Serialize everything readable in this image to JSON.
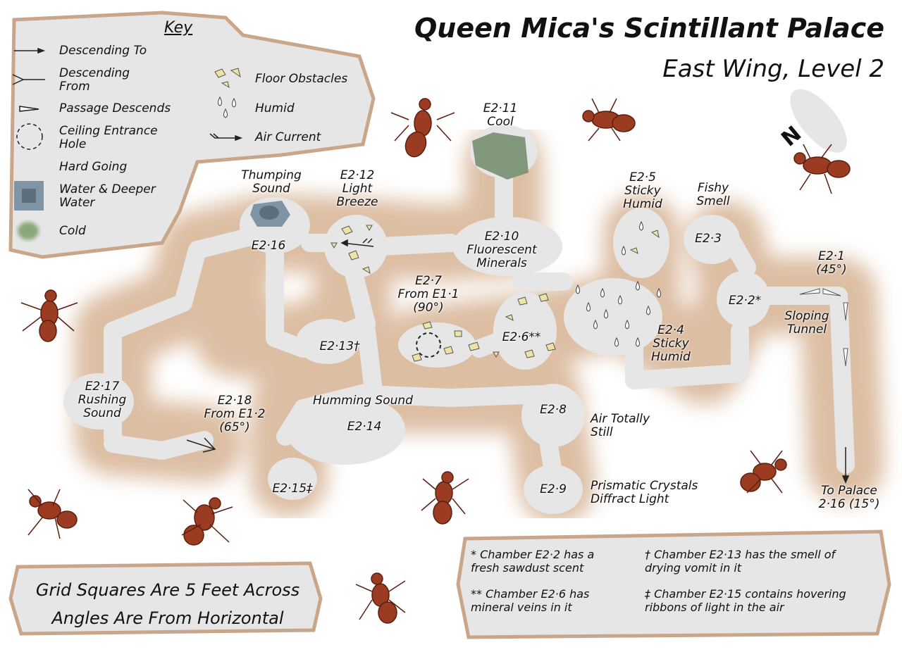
{
  "title": "Queen Mica's Scintillant Palace",
  "subtitle": "East Wing, Level 2",
  "compass_label": "N",
  "key": {
    "heading": "Key",
    "items": [
      {
        "icon": "arrow-right-icon",
        "label": "Descending To"
      },
      {
        "icon": "fork-line-icon",
        "label": "Descending From"
      },
      {
        "icon": "wedge-icon",
        "label": "Passage Descends"
      },
      {
        "icon": "dashed-circle-icon",
        "label": "Ceiling Entrance Hole"
      },
      {
        "icon": "stipple-icon",
        "label": "Hard Going"
      },
      {
        "icon": "water-square-icon",
        "label": "Water & Deeper Water"
      },
      {
        "icon": "cold-patch-icon",
        "label": "Cold"
      },
      {
        "icon": "crystals-icon",
        "label": "Floor Obstacles"
      },
      {
        "icon": "droplets-icon",
        "label": "Humid"
      },
      {
        "icon": "air-current-icon",
        "label": "Air Current"
      }
    ]
  },
  "chambers": [
    {
      "id": "e2-11",
      "lines": [
        "E2·11",
        "Cool"
      ]
    },
    {
      "id": "thumping",
      "lines": [
        "Thumping",
        "Sound"
      ]
    },
    {
      "id": "e2-12",
      "lines": [
        "E2·12",
        "Light",
        "Breeze"
      ]
    },
    {
      "id": "e2-16",
      "lines": [
        "E2·16"
      ]
    },
    {
      "id": "e2-10",
      "lines": [
        "E2·10",
        "Fluorescent",
        "Minerals"
      ]
    },
    {
      "id": "e2-5",
      "lines": [
        "E2·5",
        "Sticky",
        "Humid"
      ]
    },
    {
      "id": "fishy",
      "lines": [
        "Fishy",
        "Smell"
      ]
    },
    {
      "id": "e2-3",
      "lines": [
        "E2·3"
      ]
    },
    {
      "id": "e2-1",
      "lines": [
        "E2·1",
        "(45°)"
      ]
    },
    {
      "id": "e2-2",
      "lines": [
        "E2·2*"
      ]
    },
    {
      "id": "sloping",
      "lines": [
        "Sloping",
        "Tunnel"
      ]
    },
    {
      "id": "e2-7",
      "lines": [
        "E2·7",
        "From E1·1",
        "(90°)"
      ]
    },
    {
      "id": "e2-6",
      "lines": [
        "E2·6**"
      ]
    },
    {
      "id": "e2-4",
      "lines": [
        "E2·4",
        "Sticky",
        "Humid"
      ]
    },
    {
      "id": "e2-13",
      "lines": [
        "E2·13†"
      ]
    },
    {
      "id": "e2-17",
      "lines": [
        "E2·17",
        "Rushing",
        "Sound"
      ]
    },
    {
      "id": "e2-18",
      "lines": [
        "E2·18",
        "From E1·2",
        "(65°)"
      ]
    },
    {
      "id": "humming",
      "lines": [
        "Humming Sound"
      ]
    },
    {
      "id": "e2-14",
      "lines": [
        "E2·14"
      ]
    },
    {
      "id": "e2-8",
      "lines": [
        "E2·8"
      ]
    },
    {
      "id": "still",
      "lines": [
        "Air Totally",
        "Still"
      ]
    },
    {
      "id": "e2-15",
      "lines": [
        "E2·15‡"
      ]
    },
    {
      "id": "e2-9",
      "lines": [
        "E2·9"
      ]
    },
    {
      "id": "prismatic",
      "lines": [
        "Prismatic Crystals",
        "Diffract Light"
      ]
    },
    {
      "id": "to-palace",
      "lines": [
        "To Palace",
        "2·16 (15°)"
      ]
    }
  ],
  "scale_note": [
    "Grid Squares Are 5 Feet Across",
    "Angles Are From Horizontal"
  ],
  "footnotes": [
    [
      "* Chamber E2·2 has a",
      "fresh sawdust scent"
    ],
    [
      "** Chamber E2·6 has",
      "mineral veins in it"
    ],
    [
      "† Chamber E2·13 has the smell of",
      "drying vomit in it"
    ],
    [
      "‡ Chamber E2·15 contains hovering",
      "ribbons of light in the air"
    ]
  ],
  "colors": {
    "rock": "#d9b79a",
    "passage": "#e6e6e6",
    "water": "#7f95a6",
    "deep_water": "#5d6f7d",
    "cold": "#8aa77a",
    "crystal": "#eee3a6",
    "ant": "#9b3b22"
  }
}
